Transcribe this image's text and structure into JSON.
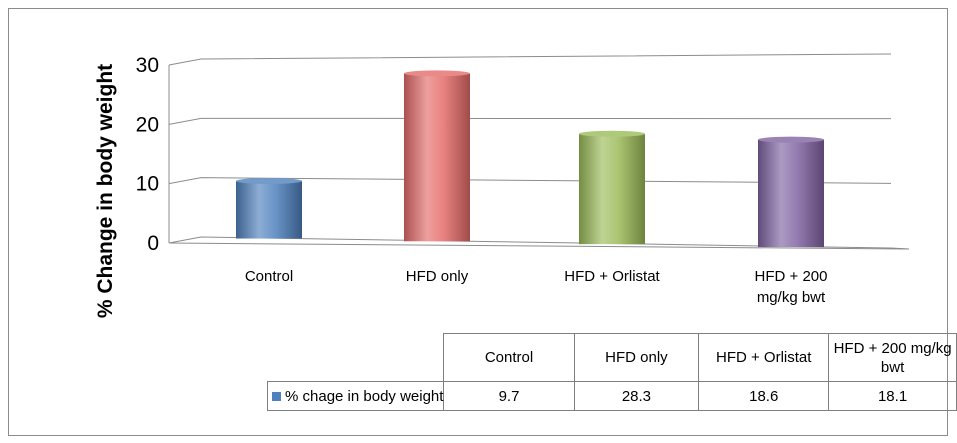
{
  "chart_data": {
    "type": "bar",
    "title": "",
    "xlabel": "",
    "ylabel": "% Change in body weight",
    "ylim": [
      0,
      30
    ],
    "yticks": [
      0,
      10,
      20,
      30
    ],
    "grid": true,
    "categories": [
      "Control",
      "HFD only",
      "HFD + Orlistat",
      "HFD + 200 mg/kg bwt"
    ],
    "axis_category_labels": [
      [
        "Control"
      ],
      [
        "HFD only"
      ],
      [
        "HFD + Orlistat"
      ],
      [
        "HFD + 200",
        "mg/kg bwt"
      ]
    ],
    "table_category_labels": [
      [
        "Control"
      ],
      [
        "HFD only"
      ],
      [
        "HFD + Orlistat"
      ],
      [
        "HFD + 200 mg/kg",
        "bwt"
      ]
    ],
    "series": [
      {
        "name": "% chage in body weight",
        "values": [
          9.7,
          28.3,
          18.6,
          18.1
        ],
        "value_labels": [
          "9.7",
          "28.3",
          "18.6",
          "18.1"
        ],
        "colors": [
          "#4f81bd",
          "#e46c6a",
          "#9bbb59",
          "#8064a2"
        ]
      }
    ],
    "legend": "data-table"
  }
}
